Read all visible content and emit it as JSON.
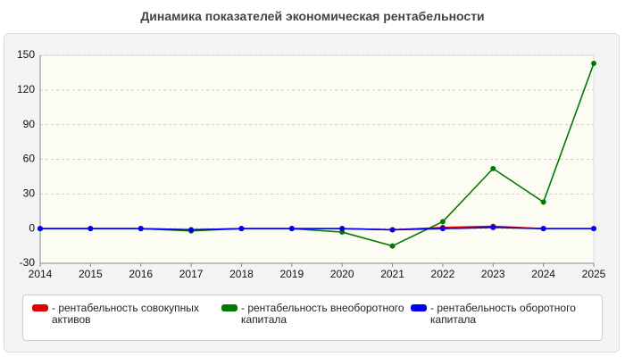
{
  "chart_data": {
    "type": "line",
    "title": "Динамика показателей экономическая рентабельности",
    "x": [
      2014,
      2015,
      2016,
      2017,
      2018,
      2019,
      2020,
      2021,
      2022,
      2023,
      2024,
      2025
    ],
    "xlim": [
      2014,
      2025
    ],
    "xticks": [
      2014,
      2015,
      2016,
      2017,
      2018,
      2019,
      2020,
      2021,
      2022,
      2023,
      2024,
      2025
    ],
    "ylim": [
      -30,
      150
    ],
    "yticks": [
      -30,
      0,
      30,
      60,
      90,
      120,
      150
    ],
    "grid": true,
    "series": [
      {
        "name": "- рентабельность совокупных активов",
        "color": "#e00000",
        "values": [
          0,
          0,
          0,
          -1,
          0,
          0,
          0,
          -1,
          1,
          2,
          0,
          0
        ]
      },
      {
        "name": "- рентабельность внеоборотного капитала",
        "color": "#007a00",
        "values": [
          0,
          0,
          0,
          -2,
          0,
          0,
          -3,
          -15,
          6,
          52,
          23,
          143
        ]
      },
      {
        "name": "- рентабельность оборотного капитала",
        "color": "#0000ee",
        "values": [
          0,
          0,
          0,
          -1,
          0,
          0,
          0,
          -1,
          0,
          1,
          0,
          0
        ]
      }
    ]
  }
}
